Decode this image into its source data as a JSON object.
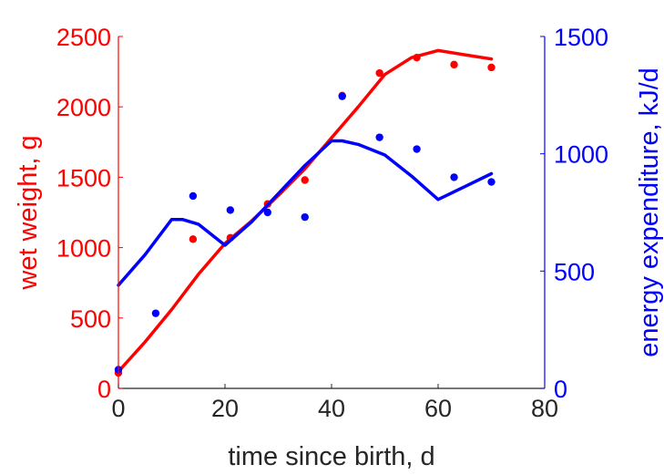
{
  "chart_data": {
    "type": "line",
    "title": "",
    "xlabel": "time since birth, d",
    "ylabel_left": "wet weight, g",
    "ylabel_right": "energy expenditure, kJ/d",
    "xlim": [
      0,
      80
    ],
    "ylim_left": [
      0,
      2500
    ],
    "ylim_right": [
      0,
      1500
    ],
    "xticks": [
      "0",
      "20",
      "40",
      "60",
      "80"
    ],
    "yticks_left": [
      "0",
      "500",
      "1000",
      "1500",
      "2000",
      "2500"
    ],
    "yticks_right": [
      "0",
      "500",
      "1000",
      "1500"
    ],
    "grid": false,
    "legend": "none",
    "colors": {
      "left": "#ff0000",
      "right": "#0000ff",
      "axis": "#262626"
    },
    "series": [
      {
        "axis": "left",
        "kind": "line",
        "x": [
          0,
          5,
          10,
          15,
          20,
          25,
          30,
          35,
          40,
          45,
          50,
          55,
          60,
          65,
          70
        ],
        "y": [
          120,
          330,
          560,
          810,
          1030,
          1190,
          1370,
          1560,
          1780,
          2000,
          2230,
          2350,
          2400,
          2370,
          2340
        ]
      },
      {
        "axis": "left",
        "kind": "scatter",
        "x": [
          0,
          14,
          21,
          28,
          35,
          42,
          49,
          56,
          63,
          70
        ],
        "y": [
          110,
          1060,
          1070,
          1310,
          1480,
          2080,
          2240,
          2350,
          2300,
          2280
        ]
      },
      {
        "axis": "right",
        "kind": "line",
        "x": [
          0,
          5,
          10,
          12,
          15,
          20,
          25,
          30,
          35,
          40,
          42,
          45,
          50,
          55,
          60,
          65,
          70
        ],
        "y": [
          440,
          570,
          720,
          720,
          700,
          610,
          710,
          830,
          950,
          1055,
          1055,
          1040,
          995,
          905,
          805,
          860,
          915
        ]
      },
      {
        "axis": "right",
        "kind": "scatter",
        "x": [
          0,
          7,
          14,
          21,
          28,
          35,
          42,
          49,
          56,
          63,
          70
        ],
        "y": [
          80,
          320,
          820,
          760,
          750,
          730,
          1245,
          1070,
          1020,
          900,
          880
        ]
      }
    ]
  }
}
